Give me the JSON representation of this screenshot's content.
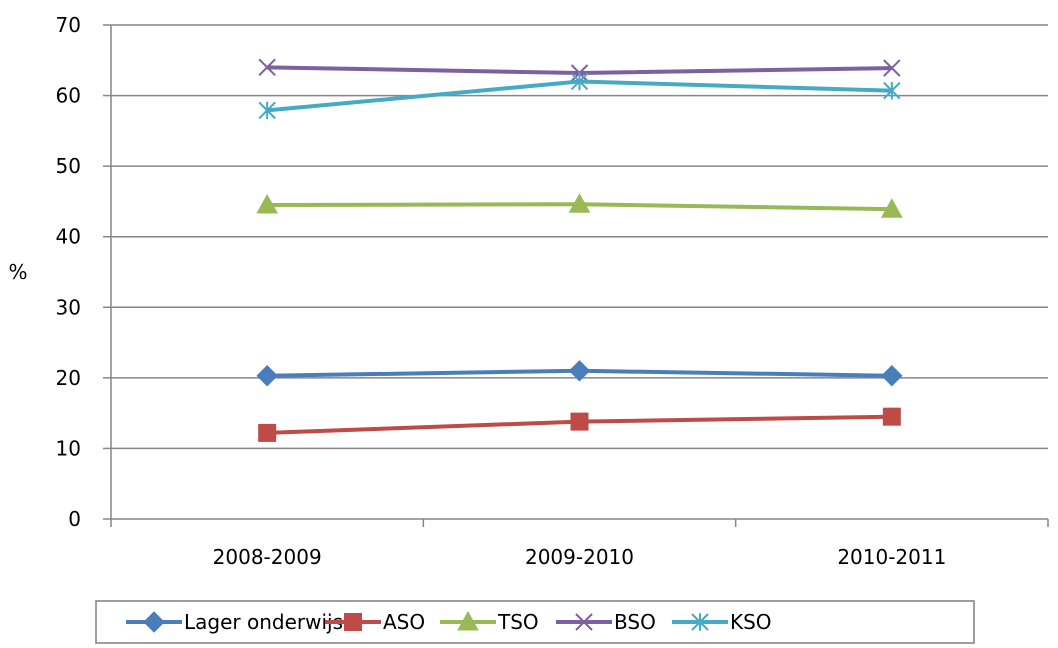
{
  "chart_data": {
    "type": "line",
    "title": "",
    "xlabel": "",
    "ylabel": "%",
    "categories": [
      "2008-2009",
      "2009-2010",
      "2010-2011"
    ],
    "ylim": [
      0,
      70
    ],
    "yticks": [
      0,
      10,
      20,
      30,
      40,
      50,
      60,
      70
    ],
    "grid": "horizontal",
    "legend_position": "bottom",
    "series": [
      {
        "name": "Lager onderwijs",
        "color": "#4A7EBB",
        "marker": "diamond",
        "values": [
          20.3,
          21.0,
          20.3
        ]
      },
      {
        "name": "ASO",
        "color": "#BE4B48",
        "marker": "square",
        "values": [
          12.2,
          13.8,
          14.5
        ]
      },
      {
        "name": "TSO",
        "color": "#98B954",
        "marker": "triangle",
        "values": [
          44.5,
          44.6,
          43.9
        ]
      },
      {
        "name": "BSO",
        "color": "#7D60A0",
        "marker": "x",
        "values": [
          64.0,
          63.2,
          63.9
        ]
      },
      {
        "name": "KSO",
        "color": "#46AAC5",
        "marker": "asterisk",
        "values": [
          57.9,
          62.0,
          60.7
        ]
      }
    ]
  }
}
